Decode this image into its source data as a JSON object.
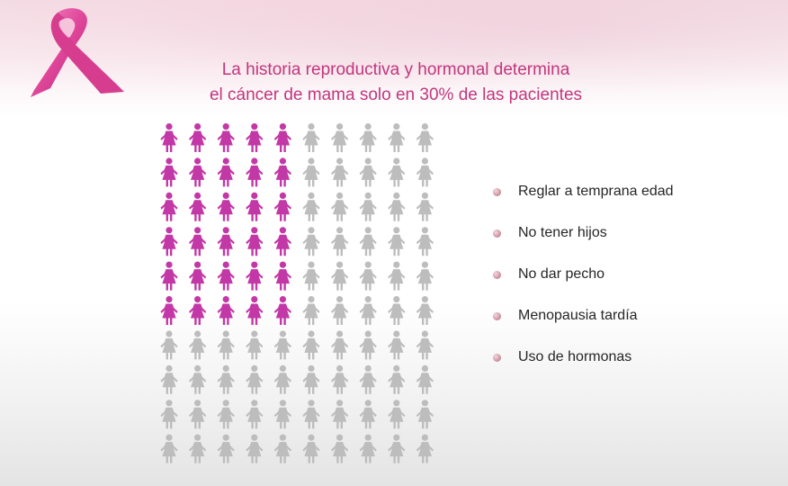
{
  "title": {
    "line1": "La historia reproductiva y hormonal determina",
    "line2": "el cáncer de mama solo en 30% de las pacientes"
  },
  "figure_grid": {
    "rows": 10,
    "cols": 10,
    "highlighted_rows": 6,
    "highlighted_cols": 5,
    "highlight_color": "#c238a6",
    "base_color": "#bdbdbd"
  },
  "bullets": [
    {
      "label": "Reglar a temprana edad"
    },
    {
      "label": "No tener hijos"
    },
    {
      "label": "No dar pecho"
    },
    {
      "label": "Menopausia tardía"
    },
    {
      "label": "Uso de hormonas"
    }
  ],
  "colors": {
    "title": "#c2367d",
    "ribbon": "#e25aa4"
  }
}
